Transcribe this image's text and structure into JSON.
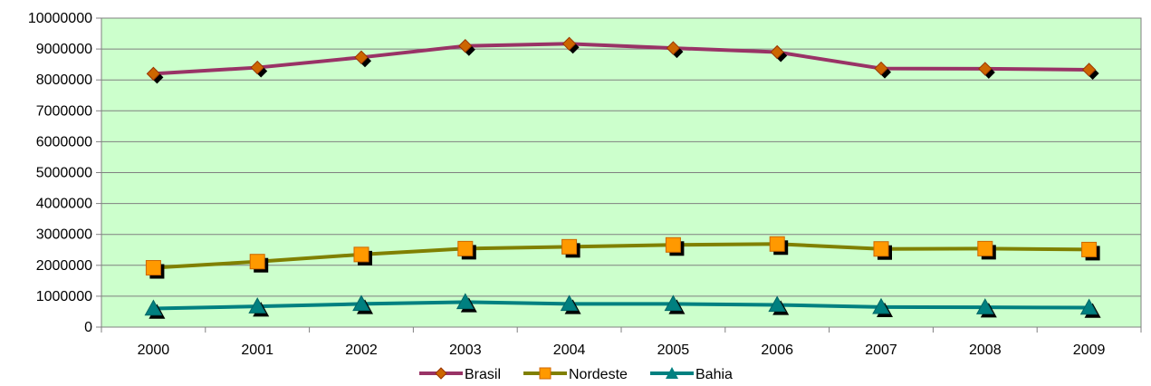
{
  "chart_data": {
    "type": "line",
    "categories": [
      "2000",
      "2001",
      "2002",
      "2003",
      "2004",
      "2005",
      "2006",
      "2007",
      "2008",
      "2009"
    ],
    "ylim": [
      0,
      10000000
    ],
    "yticks": [
      "0",
      "1000000",
      "2000000",
      "3000000",
      "4000000",
      "5000000",
      "6000000",
      "7000000",
      "8000000",
      "9000000",
      "10000000"
    ],
    "grid": true,
    "legend_position": "bottom",
    "plot_background": "#ccffcc",
    "series": [
      {
        "name": "Brasil",
        "color": "#993366",
        "marker": "diamond",
        "marker_color": "#cc6600",
        "values": [
          8200000,
          8400000,
          8730000,
          9100000,
          9170000,
          9030000,
          8900000,
          8370000,
          8360000,
          8330000
        ]
      },
      {
        "name": "Nordeste",
        "color": "#808000",
        "marker": "square",
        "marker_color": "#ff9900",
        "values": [
          1920000,
          2120000,
          2350000,
          2540000,
          2600000,
          2660000,
          2690000,
          2530000,
          2540000,
          2510000
        ]
      },
      {
        "name": "Bahia",
        "color": "#008080",
        "marker": "triangle",
        "marker_color": "#008080",
        "values": [
          600000,
          670000,
          750000,
          810000,
          750000,
          750000,
          720000,
          650000,
          640000,
          630000
        ]
      }
    ]
  }
}
